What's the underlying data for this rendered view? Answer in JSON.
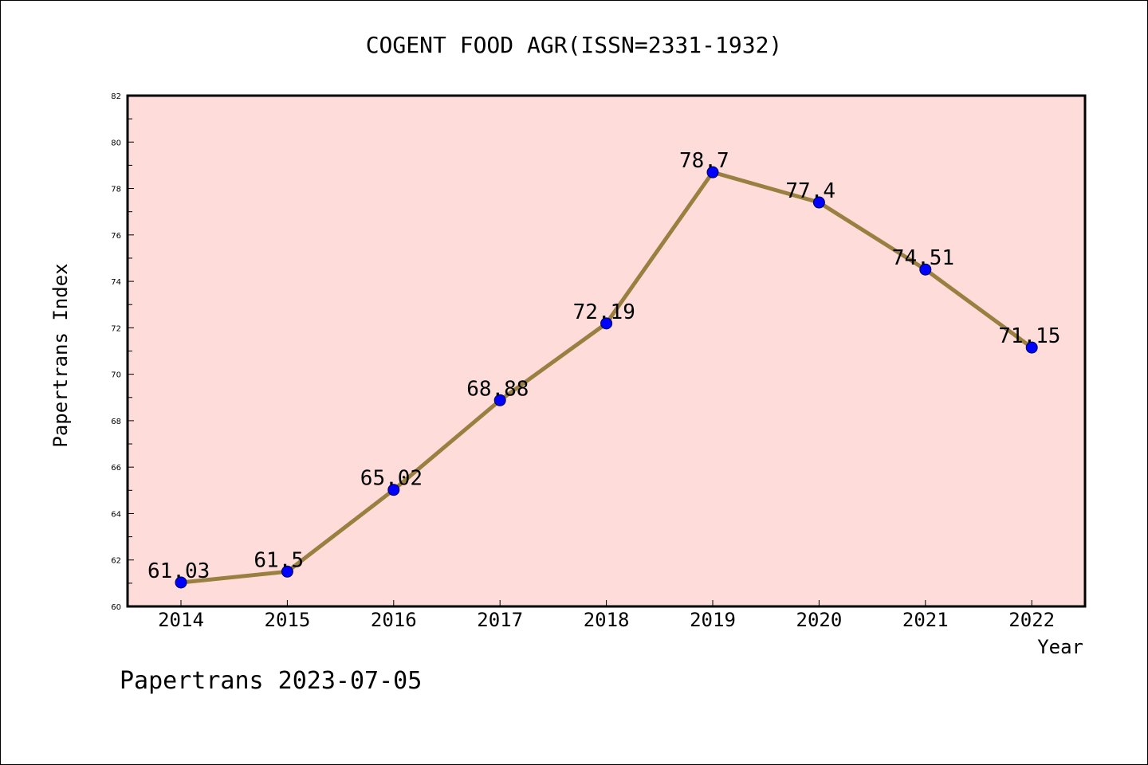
{
  "chart_data": {
    "type": "line",
    "title": "COGENT FOOD AGR(ISSN=2331-1932)",
    "xlabel": "Year",
    "ylabel": "Papertrans Index",
    "categories": [
      "2014",
      "2015",
      "2016",
      "2017",
      "2018",
      "2019",
      "2020",
      "2021",
      "2022"
    ],
    "series": [
      {
        "values": [
          61.03,
          61.5,
          65.02,
          68.88,
          72.19,
          78.7,
          77.4,
          74.51,
          71.15
        ]
      }
    ],
    "data_labels": [
      "61.03",
      "61.5",
      "65.02",
      "68.88",
      "72.19",
      "78.7",
      "77.4",
      "74.51",
      "71.15"
    ],
    "yticks": [
      "60",
      "62",
      "64",
      "66",
      "68",
      "70",
      "72",
      "74",
      "76",
      "78",
      "80",
      "82"
    ],
    "ylim": [
      60,
      82
    ],
    "grid": false,
    "legend": "none",
    "colors": {
      "plot_background": "#fddcda",
      "line": "#9a8040",
      "marker": "#0000ff",
      "axis": "#000000"
    }
  },
  "footer": {
    "text": "Papertrans 2023-07-05"
  }
}
